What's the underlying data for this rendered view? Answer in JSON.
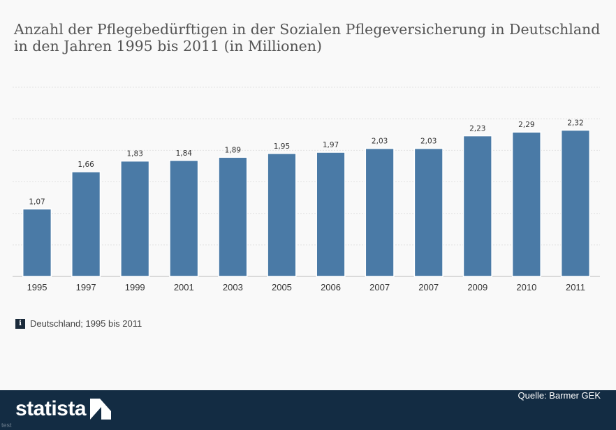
{
  "title": "Anzahl der Pflegebedürftigen in der Sozialen Pflegeversicherung in Deutschland in den Jahren 1995 bis 2011 (in Millionen)",
  "note": {
    "icon": "info-icon",
    "icon_glyph": "i",
    "text": "Deutschland; 1995 bis 2011"
  },
  "footer": {
    "brand": "statista",
    "source": "Quelle: Barmer GEK",
    "corner_text": "test"
  },
  "colors": {
    "bar": "#4a7aa6",
    "bar_edge": "#ffffff",
    "footer_bg": "#132c43",
    "grid": "#e2e2e2"
  },
  "chart_data": {
    "type": "bar",
    "categories": [
      "1995",
      "1997",
      "1999",
      "2001",
      "2003",
      "2005",
      "2006",
      "2007",
      "2007",
      "2009",
      "2010",
      "2011"
    ],
    "values": [
      1.07,
      1.66,
      1.83,
      1.84,
      1.89,
      1.95,
      1.97,
      2.03,
      2.03,
      2.23,
      2.29,
      2.32
    ],
    "value_labels": [
      "1,07",
      "1,66",
      "1,83",
      "1,84",
      "1,89",
      "1,95",
      "1,97",
      "2,03",
      "2,03",
      "2,23",
      "2,29",
      "2,32"
    ],
    "ylim": [
      0,
      3
    ],
    "grid": true,
    "legend": "none"
  }
}
